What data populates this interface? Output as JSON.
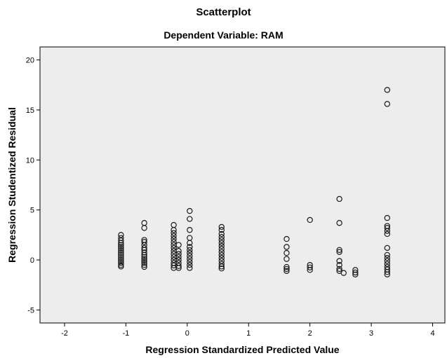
{
  "chart_data": {
    "type": "scatter",
    "title": "Scatterplot",
    "subtitle": "Dependent Variable: RAM",
    "xlabel": "Regression Standardized Predicted Value",
    "ylabel": "Regression Studentized Residual",
    "xlim": [
      -2.4,
      4.2
    ],
    "ylim": [
      -6.3,
      21.3
    ],
    "xticks": [
      -2,
      -1,
      0,
      1,
      2,
      3,
      4
    ],
    "yticks": [
      -5,
      0,
      5,
      10,
      15,
      20
    ],
    "grid": false,
    "legend": "none",
    "colors": {
      "plot_background": "#ededed",
      "marker_stroke": "#1a1a1a",
      "axis": "#000000"
    },
    "series": [
      {
        "points": [
          [
            -1.08,
            2.5
          ],
          [
            -1.08,
            2.2
          ],
          [
            -1.08,
            1.95
          ],
          [
            -1.08,
            1.7
          ],
          [
            -1.08,
            1.5
          ],
          [
            -1.08,
            1.3
          ],
          [
            -1.08,
            1.1
          ],
          [
            -1.08,
            0.9
          ],
          [
            -1.08,
            0.7
          ],
          [
            -1.08,
            0.5
          ],
          [
            -1.08,
            0.3
          ],
          [
            -1.08,
            0.1
          ],
          [
            -1.08,
            -0.1
          ],
          [
            -1.08,
            -0.3
          ],
          [
            -1.08,
            -0.5
          ],
          [
            -1.08,
            -0.65
          ],
          [
            -0.7,
            3.7
          ],
          [
            -0.7,
            3.2
          ],
          [
            -0.7,
            2.0
          ],
          [
            -0.7,
            1.8
          ],
          [
            -0.7,
            1.5
          ],
          [
            -0.7,
            1.2
          ],
          [
            -0.7,
            1.0
          ],
          [
            -0.7,
            0.75
          ],
          [
            -0.7,
            0.5
          ],
          [
            -0.7,
            0.3
          ],
          [
            -0.7,
            0.1
          ],
          [
            -0.7,
            -0.1
          ],
          [
            -0.7,
            -0.3
          ],
          [
            -0.7,
            -0.5
          ],
          [
            -0.7,
            -0.7
          ],
          [
            -0.22,
            3.5
          ],
          [
            -0.22,
            3.0
          ],
          [
            -0.22,
            2.7
          ],
          [
            -0.22,
            2.4
          ],
          [
            -0.22,
            2.1
          ],
          [
            -0.22,
            1.8
          ],
          [
            -0.22,
            1.5
          ],
          [
            -0.22,
            1.2
          ],
          [
            -0.22,
            0.9
          ],
          [
            -0.22,
            0.6
          ],
          [
            -0.22,
            0.3
          ],
          [
            -0.22,
            0.0
          ],
          [
            -0.22,
            -0.3
          ],
          [
            -0.22,
            -0.55
          ],
          [
            -0.22,
            -0.8
          ],
          [
            -0.14,
            1.5
          ],
          [
            -0.14,
            0.9
          ],
          [
            -0.14,
            0.6
          ],
          [
            -0.14,
            0.3
          ],
          [
            -0.14,
            0.0
          ],
          [
            -0.14,
            -0.3
          ],
          [
            -0.14,
            -0.6
          ],
          [
            -0.14,
            -0.8
          ],
          [
            0.04,
            4.9
          ],
          [
            0.04,
            4.1
          ],
          [
            0.04,
            3.0
          ],
          [
            0.04,
            2.2
          ],
          [
            0.04,
            1.7
          ],
          [
            0.04,
            1.3
          ],
          [
            0.04,
            1.0
          ],
          [
            0.04,
            0.7
          ],
          [
            0.04,
            0.4
          ],
          [
            0.04,
            0.1
          ],
          [
            0.04,
            -0.2
          ],
          [
            0.04,
            -0.5
          ],
          [
            0.04,
            -0.8
          ],
          [
            0.56,
            3.3
          ],
          [
            0.56,
            3.0
          ],
          [
            0.56,
            2.6
          ],
          [
            0.56,
            2.3
          ],
          [
            0.56,
            2.0
          ],
          [
            0.56,
            1.7
          ],
          [
            0.56,
            1.4
          ],
          [
            0.56,
            1.1
          ],
          [
            0.56,
            0.8
          ],
          [
            0.56,
            0.5
          ],
          [
            0.56,
            0.2
          ],
          [
            0.56,
            -0.1
          ],
          [
            0.56,
            -0.4
          ],
          [
            0.56,
            -0.65
          ],
          [
            0.56,
            -0.85
          ],
          [
            1.62,
            2.1
          ],
          [
            1.62,
            1.3
          ],
          [
            1.62,
            0.7
          ],
          [
            1.62,
            0.1
          ],
          [
            1.62,
            -0.7
          ],
          [
            1.62,
            -0.9
          ],
          [
            1.62,
            -1.1
          ],
          [
            2.0,
            4.0
          ],
          [
            2.0,
            -0.5
          ],
          [
            2.0,
            -0.75
          ],
          [
            2.0,
            -1.0
          ],
          [
            2.48,
            6.1
          ],
          [
            2.48,
            3.7
          ],
          [
            2.48,
            1.0
          ],
          [
            2.48,
            0.8
          ],
          [
            2.48,
            -0.1
          ],
          [
            2.48,
            -0.5
          ],
          [
            2.48,
            -0.9
          ],
          [
            2.48,
            -1.1
          ],
          [
            2.55,
            -1.3
          ],
          [
            2.74,
            -1.0
          ],
          [
            2.74,
            -1.25
          ],
          [
            2.74,
            -1.45
          ],
          [
            3.26,
            17.0
          ],
          [
            3.26,
            15.6
          ],
          [
            3.26,
            4.2
          ],
          [
            3.26,
            3.4
          ],
          [
            3.26,
            3.2
          ],
          [
            3.26,
            2.9
          ],
          [
            3.26,
            2.6
          ],
          [
            3.26,
            1.2
          ],
          [
            3.26,
            0.5
          ],
          [
            3.26,
            0.2
          ],
          [
            3.26,
            -0.1
          ],
          [
            3.26,
            -0.4
          ],
          [
            3.26,
            -0.7
          ],
          [
            3.26,
            -0.95
          ],
          [
            3.26,
            -1.2
          ],
          [
            3.26,
            -1.45
          ]
        ]
      }
    ]
  }
}
